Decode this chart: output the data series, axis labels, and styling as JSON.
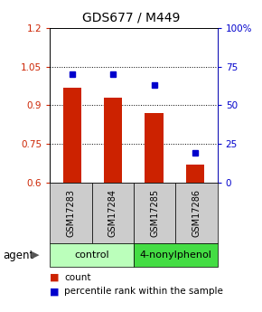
{
  "title": "GDS677 / M449",
  "samples": [
    "GSM17283",
    "GSM17284",
    "GSM17285",
    "GSM17286"
  ],
  "bar_values": [
    0.97,
    0.93,
    0.87,
    0.67
  ],
  "percentile_values": [
    70.0,
    70.0,
    63.0,
    19.5
  ],
  "ylim": [
    0.6,
    1.2
  ],
  "yticks_left": [
    0.6,
    0.75,
    0.9,
    1.05,
    1.2
  ],
  "yticks_left_labels": [
    "0.6",
    "0.75",
    "0.9",
    "1.05",
    "1.2"
  ],
  "yticks_right": [
    0,
    25,
    50,
    75,
    100
  ],
  "yticks_right_labels": [
    "0",
    "25",
    "50",
    "75",
    "100%"
  ],
  "bar_color": "#cc2200",
  "marker_color": "#0000cc",
  "groups": [
    {
      "label": "control",
      "samples": [
        0,
        1
      ],
      "color": "#bbffbb"
    },
    {
      "label": "4-nonylphenol",
      "samples": [
        2,
        3
      ],
      "color": "#44dd44"
    }
  ],
  "sample_box_color": "#cccccc",
  "title_fontsize": 10,
  "tick_fontsize": 7.5,
  "label_fontsize": 7,
  "legend_fontsize": 7.5,
  "agent_fontsize": 8.5,
  "group_fontsize": 8
}
